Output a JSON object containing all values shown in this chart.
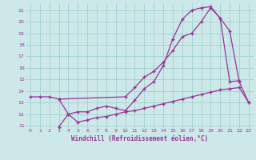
{
  "xlabel": "Windchill (Refroidissement éolien,°C)",
  "bg_color": "#cce8e8",
  "line_color": "#993399",
  "grid_color": "#99cccc",
  "xlim": [
    -0.5,
    23.5
  ],
  "ylim": [
    10.8,
    21.6
  ],
  "yticks": [
    11,
    12,
    13,
    14,
    15,
    16,
    17,
    18,
    19,
    20,
    21
  ],
  "xticks": [
    0,
    1,
    2,
    3,
    4,
    5,
    6,
    7,
    8,
    9,
    10,
    11,
    12,
    13,
    14,
    15,
    16,
    17,
    18,
    19,
    20,
    21,
    22,
    23
  ],
  "line1_x": [
    0,
    1,
    2,
    3,
    4,
    5,
    6,
    7,
    8,
    9,
    10,
    11,
    12,
    13,
    14,
    15,
    16,
    17,
    18,
    19,
    20,
    21,
    22
  ],
  "line1_y": [
    13.5,
    13.5,
    13.5,
    13.3,
    12.0,
    12.2,
    12.2,
    12.5,
    12.7,
    12.5,
    12.3,
    13.2,
    14.2,
    14.8,
    16.2,
    18.5,
    20.2,
    21.0,
    21.2,
    21.3,
    20.3,
    14.8,
    14.9
  ],
  "line2_x": [
    3,
    4,
    5,
    6,
    7,
    8,
    9,
    10,
    11,
    12,
    13,
    14,
    15,
    16,
    17,
    18,
    19,
    20,
    21,
    22,
    23
  ],
  "line2_y": [
    10.9,
    12.0,
    11.3,
    11.5,
    11.7,
    11.8,
    12.0,
    12.2,
    12.3,
    12.5,
    12.7,
    12.9,
    13.1,
    13.3,
    13.5,
    13.7,
    13.9,
    14.1,
    14.2,
    14.3,
    13.0
  ],
  "line3_x": [
    3,
    10,
    11,
    12,
    13,
    14,
    15,
    16,
    17,
    18,
    19,
    20,
    21,
    22,
    23
  ],
  "line3_y": [
    13.3,
    13.5,
    14.3,
    15.2,
    15.7,
    16.5,
    17.5,
    18.7,
    19.0,
    20.0,
    21.2,
    20.3,
    19.2,
    14.8,
    13.0
  ]
}
